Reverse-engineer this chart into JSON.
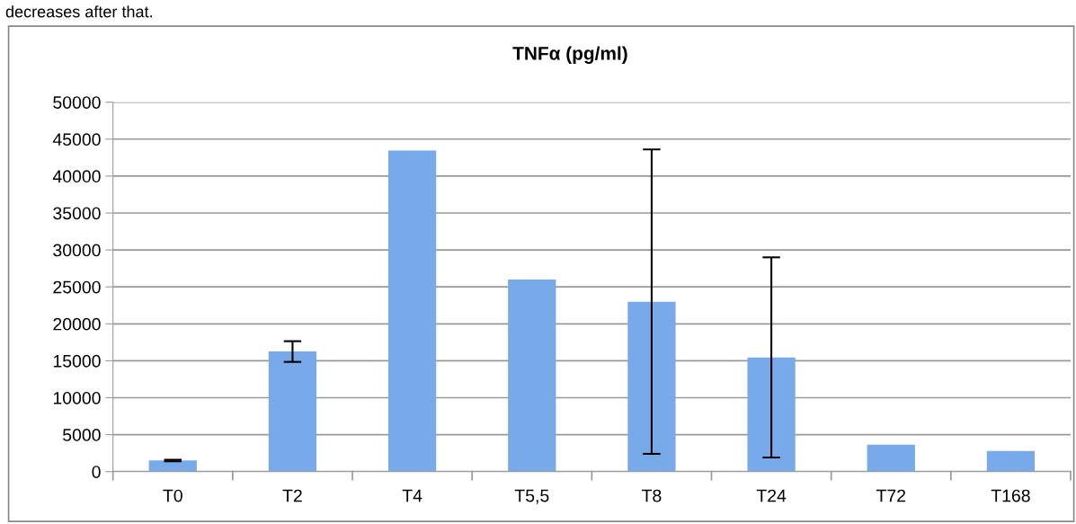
{
  "chart_data": {
    "type": "bar",
    "title": "TNFα (pg/ml)",
    "categories": [
      "T0",
      "T2",
      "T4",
      "T5,5",
      "T8",
      "T24",
      "T72",
      "T168"
    ],
    "values": [
      1500,
      16250,
      43450,
      26000,
      23000,
      15450,
      3640,
      2780
    ],
    "errors": [
      100,
      1400,
      null,
      null,
      20600,
      13550,
      null,
      null
    ],
    "color": "#78aaea",
    "ylim": [
      0,
      50000
    ],
    "yticks": [
      0,
      5000,
      10000,
      15000,
      20000,
      25000,
      30000,
      35000,
      40000,
      45000,
      50000
    ],
    "grid": "y",
    "annotations": [
      "decreases after that."
    ]
  }
}
